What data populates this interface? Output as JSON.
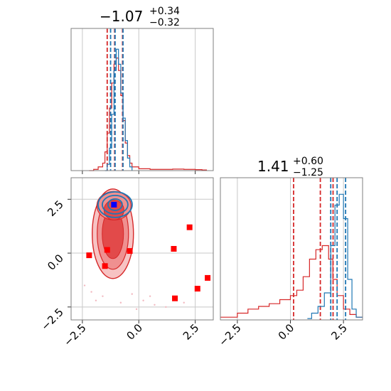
{
  "chart_data": [
    {
      "type": "histogram",
      "panel": "marginal-x",
      "title": {
        "value": "−1.07",
        "plus": "+0.34",
        "minus": "−0.32"
      },
      "xlim": [
        -3.0,
        3.3
      ],
      "grid": true,
      "series": [
        {
          "color": "#d62728",
          "bins": [
            [
              -2.2,
              0
            ],
            [
              -2.0,
              0.01
            ],
            [
              -1.8,
              0.03
            ],
            [
              -1.6,
              0.06
            ],
            [
              -1.5,
              0.15
            ],
            [
              -1.4,
              0.3
            ],
            [
              -1.3,
              0.5
            ],
            [
              -1.2,
              0.7
            ],
            [
              -1.1,
              0.85
            ],
            [
              -1.0,
              0.9
            ],
            [
              -0.9,
              0.8
            ],
            [
              -0.8,
              0.6
            ],
            [
              -0.7,
              0.4
            ],
            [
              -0.6,
              0.22
            ],
            [
              -0.5,
              0.12
            ],
            [
              -0.4,
              0.06
            ],
            [
              -0.3,
              0.03
            ],
            [
              0.0,
              0.015
            ],
            [
              0.5,
              0.01
            ],
            [
              1.0,
              0.01
            ],
            [
              1.5,
              0.012
            ],
            [
              2.0,
              0.01
            ],
            [
              2.5,
              0.008
            ],
            [
              2.8,
              0.005
            ],
            [
              3.0,
              0
            ]
          ],
          "quantiles": [
            -1.4,
            -1.07,
            -0.72
          ]
        },
        {
          "color": "#1f77b4",
          "bins": [
            [
              -1.5,
              0
            ],
            [
              -1.4,
              0.05
            ],
            [
              -1.3,
              0.18
            ],
            [
              -1.2,
              0.45
            ],
            [
              -1.1,
              0.8
            ],
            [
              -1.0,
              0.97
            ],
            [
              -0.9,
              0.85
            ],
            [
              -0.8,
              0.62
            ],
            [
              -0.7,
              0.42
            ],
            [
              -0.6,
              0.24
            ],
            [
              -0.5,
              0.1
            ],
            [
              -0.4,
              0.03
            ],
            [
              -0.3,
              0
            ]
          ],
          "quantiles": [
            -1.25,
            -1.05,
            -0.7
          ]
        }
      ]
    },
    {
      "type": "contour",
      "panel": "joint",
      "xlim": [
        -3.0,
        3.3
      ],
      "ylim": [
        -3.1,
        3.5
      ],
      "xticks": [
        "−2.5",
        "0.0",
        "2.5"
      ],
      "yticks": [
        "2.5",
        "0.0",
        "−2.5"
      ],
      "xtick_values": [
        -2.5,
        0.0,
        2.5
      ],
      "ytick_values": [
        2.5,
        0.0,
        -2.5
      ],
      "grid": true,
      "contour_colors": [
        "#d62728",
        "#1f77b4"
      ],
      "markers": {
        "red": [
          [
            -2.2,
            -0.1
          ],
          [
            -1.5,
            -0.6
          ],
          [
            -1.4,
            0.15
          ],
          [
            -0.4,
            0.1
          ],
          [
            1.55,
            0.2
          ],
          [
            2.25,
            1.2
          ],
          [
            2.6,
            -1.65
          ],
          [
            3.05,
            -1.15
          ],
          [
            1.6,
            -2.1
          ]
        ],
        "blue": [
          [
            -1.1,
            2.25
          ]
        ]
      }
    },
    {
      "type": "histogram",
      "panel": "marginal-y",
      "title": {
        "value": "1.41",
        "plus": "+0.60",
        "minus": "−1.25"
      },
      "xlim": [
        -3.3,
        3.4
      ],
      "xticks": [
        "−2.5",
        "0.0",
        "2.5"
      ],
      "xtick_values": [
        -2.5,
        0.0,
        2.5
      ],
      "grid": true,
      "series": [
        {
          "color": "#d62728",
          "bins": [
            [
              -3.3,
              0.02
            ],
            [
              -2.5,
              0.05
            ],
            [
              -2.0,
              0.08
            ],
            [
              -1.5,
              0.1
            ],
            [
              -1.0,
              0.12
            ],
            [
              -0.5,
              0.15
            ],
            [
              0.0,
              0.18
            ],
            [
              0.3,
              0.22
            ],
            [
              0.6,
              0.32
            ],
            [
              0.9,
              0.45
            ],
            [
              1.2,
              0.52
            ],
            [
              1.5,
              0.55
            ],
            [
              1.8,
              0.45
            ],
            [
              2.0,
              0.3
            ],
            [
              2.2,
              0.18
            ],
            [
              2.5,
              0.08
            ],
            [
              2.8,
              0.04
            ],
            [
              3.1,
              0.02
            ]
          ],
          "quantiles": [
            0.15,
            1.41,
            2.01
          ]
        },
        {
          "color": "#1f77b4",
          "bins": [
            [
              0.8,
              0.01
            ],
            [
              1.0,
              0.05
            ],
            [
              1.3,
              0.1
            ],
            [
              1.6,
              0.2
            ],
            [
              1.9,
              0.55
            ],
            [
              2.1,
              0.85
            ],
            [
              2.3,
              0.93
            ],
            [
              2.5,
              0.75
            ],
            [
              2.7,
              0.3
            ],
            [
              2.9,
              0.08
            ],
            [
              3.1,
              0.02
            ]
          ],
          "quantiles": [
            1.9,
            2.2,
            2.6
          ]
        }
      ]
    }
  ]
}
